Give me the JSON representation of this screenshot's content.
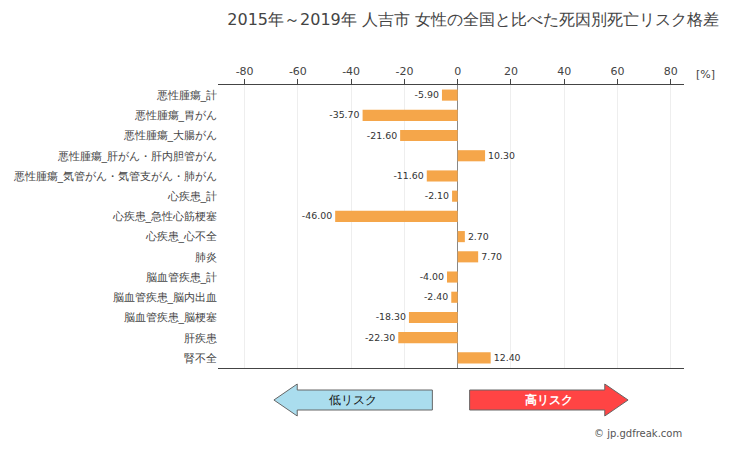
{
  "chart_data": {
    "type": "bar",
    "orientation": "horizontal",
    "title": "2015年～2019年 人吉市 女性の全国と比べた死因別死亡リスク格差",
    "xlabel": "[%]",
    "categories": [
      "悪性腫瘍_計",
      "悪性腫瘍_胃がん",
      "悪性腫瘍_大腸がん",
      "悪性腫瘍_肝がん・肝内胆管がん",
      "悪性腫瘍_気管がん・気管支がん・肺がん",
      "心疾患_計",
      "心疾患_急性心筋梗塞",
      "心疾患_心不全",
      "肺炎",
      "脳血管疾患_計",
      "脳血管疾患_脳内出血",
      "脳血管疾患_脳梗塞",
      "肝疾患",
      "腎不全"
    ],
    "values": [
      -5.9,
      -35.7,
      -21.6,
      10.3,
      -11.6,
      -2.1,
      -46.0,
      2.7,
      7.7,
      -4.0,
      -2.4,
      -18.3,
      -22.3,
      12.4
    ],
    "value_labels": [
      "-5.90",
      "-35.70",
      "-21.60",
      "10.30",
      "-11.60",
      "-2.10",
      "-46.00",
      "2.70",
      "7.70",
      "-4.00",
      "-2.40",
      "-18.30",
      "-22.30",
      "12.40"
    ],
    "data_labels": true,
    "color": "#F5A64A",
    "xlim": [
      -90,
      85
    ],
    "xticks": [
      -80,
      -60,
      -40,
      -20,
      0,
      20,
      40,
      60,
      80
    ],
    "grid": true,
    "annotations": [
      {
        "text": "低リスク",
        "color": "#AADDEE"
      },
      {
        "text": "高リスク",
        "color": "#FF4444"
      },
      {
        "text": "© jp.gdfreak.com"
      }
    ]
  }
}
